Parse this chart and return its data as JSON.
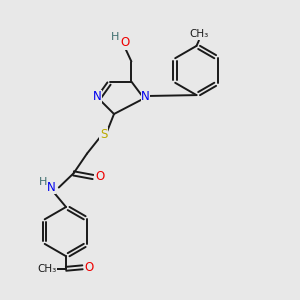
{
  "bg_color": "#e8e8e8",
  "line_color": "#1a1a1a",
  "N_color": "#0000ee",
  "O_color": "#ee0000",
  "S_color": "#bbaa00",
  "H_color": "#407070",
  "bond_lw": 1.4,
  "font_size": 8.5,
  "fig_size": [
    3.0,
    3.0
  ],
  "dpi": 100,
  "xlim": [
    0,
    10
  ],
  "ylim": [
    0,
    10
  ]
}
